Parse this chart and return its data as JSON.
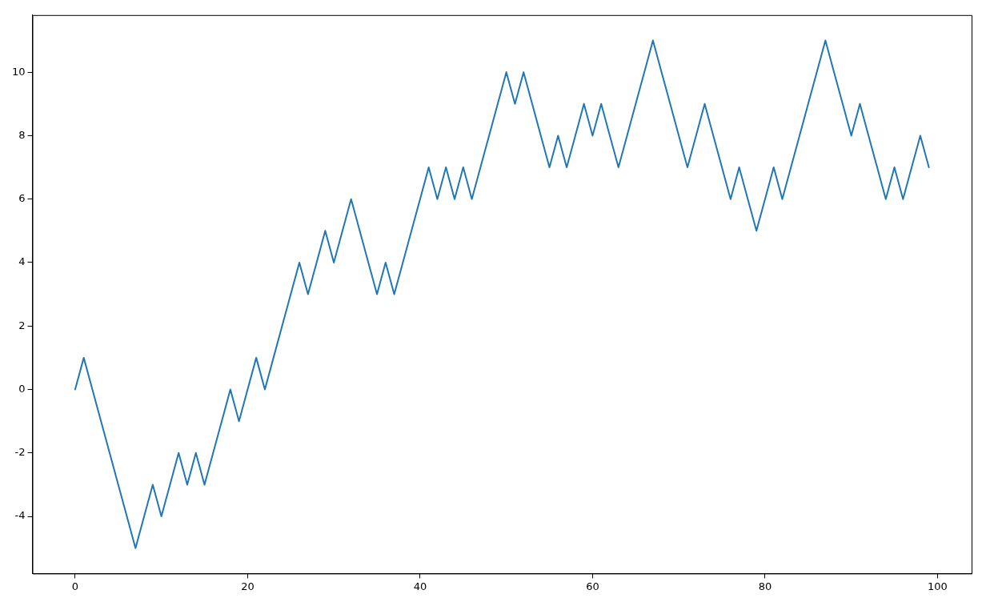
{
  "chart_data": {
    "type": "line",
    "x": [
      0,
      1,
      2,
      3,
      4,
      5,
      6,
      7,
      8,
      9,
      10,
      11,
      12,
      13,
      14,
      15,
      16,
      17,
      18,
      19,
      20,
      21,
      22,
      23,
      24,
      25,
      26,
      27,
      28,
      29,
      30,
      31,
      32,
      33,
      34,
      35,
      36,
      37,
      38,
      39,
      40,
      41,
      42,
      43,
      44,
      45,
      46,
      47,
      48,
      49,
      50,
      51,
      52,
      53,
      54,
      55,
      56,
      57,
      58,
      59,
      60,
      61,
      62,
      63,
      64,
      65,
      66,
      67,
      68,
      69,
      70,
      71,
      72,
      73,
      74,
      75,
      76,
      77,
      78,
      79,
      80,
      81,
      82,
      83,
      84,
      85,
      86,
      87,
      88,
      89,
      90,
      91,
      92,
      93,
      94,
      95,
      96,
      97,
      98,
      99
    ],
    "series": [
      {
        "color": "#1f77b4",
        "values": [
          0,
          1,
          0,
          -1,
          -2,
          -3,
          -4,
          -5,
          -4,
          -3,
          -4,
          -3,
          -2,
          -3,
          -2,
          -3,
          -2,
          -1,
          0,
          -1,
          0,
          1,
          0,
          1,
          2,
          3,
          4,
          3,
          4,
          5,
          4,
          5,
          6,
          5,
          4,
          3,
          4,
          3,
          4,
          5,
          6,
          7,
          6,
          7,
          6,
          7,
          6,
          7,
          8,
          9,
          10,
          9,
          10,
          9,
          8,
          7,
          8,
          7,
          8,
          9,
          8,
          9,
          8,
          7,
          8,
          9,
          10,
          11,
          10,
          9,
          8,
          7,
          8,
          9,
          8,
          7,
          6,
          7,
          6,
          5,
          6,
          7,
          6,
          7,
          8,
          9,
          10,
          11,
          10,
          9,
          8,
          9,
          8,
          7,
          6,
          7,
          6,
          7,
          8,
          7
        ]
      }
    ],
    "xlim": [
      -4.95,
      103.95
    ],
    "xticks": [
      0,
      20,
      40,
      60,
      80,
      100
    ],
    "ylim": [
      -5.8,
      11.8
    ],
    "yticks": [
      -4,
      -2,
      0,
      2,
      4,
      6,
      8,
      10
    ],
    "grid": false,
    "legend": false,
    "marker": "none",
    "line_style": "solid"
  }
}
